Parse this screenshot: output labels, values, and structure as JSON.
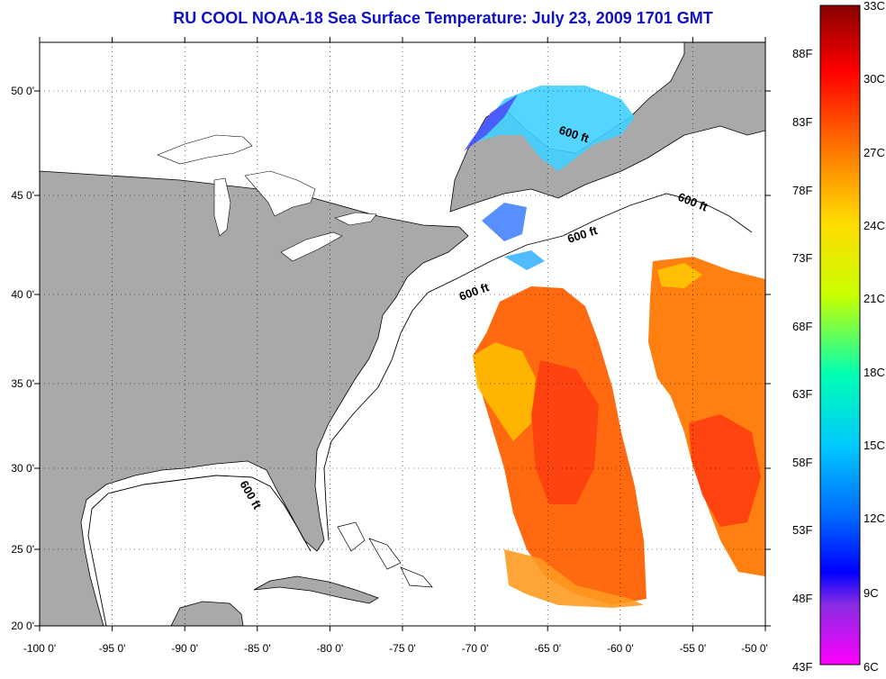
{
  "title": "RU COOL  NOAA-18  Sea Surface Temperature:  July 23, 2009 1701 GMT",
  "map": {
    "lon_labels": [
      "-100 0'",
      "-95 0'",
      "-90 0'",
      "-85 0'",
      "-80 0'",
      "-75 0'",
      "-70 0'",
      "-65 0'",
      "-60 0'",
      "-55 0'",
      "-50 0'"
    ],
    "lat_labels": [
      "50 0'",
      "45 0'",
      "40 0'",
      "35 0'",
      "30 0'",
      "25 0'",
      "20 0'"
    ],
    "isobath_label": "600 ft",
    "colors": {
      "land": "#a9a9a9",
      "ocean": "#ffffff",
      "grid": "#000000"
    }
  },
  "colorbar": {
    "fahrenheit_labels": [
      "88F",
      "83F",
      "78F",
      "73F",
      "68F",
      "63F",
      "58F",
      "53F",
      "48F",
      "43F"
    ],
    "celsius_labels": [
      "33C",
      "30C",
      "27C",
      "24C",
      "21C",
      "18C",
      "15C",
      "12C",
      "9C",
      "6C"
    ],
    "stops": [
      "#880000",
      "#ff0000",
      "#ff7800",
      "#ffdc00",
      "#c8ff00",
      "#00ffb4",
      "#00c8ff",
      "#0064ff",
      "#0000ff",
      "#8a2be2",
      "#ff00ff"
    ]
  }
}
